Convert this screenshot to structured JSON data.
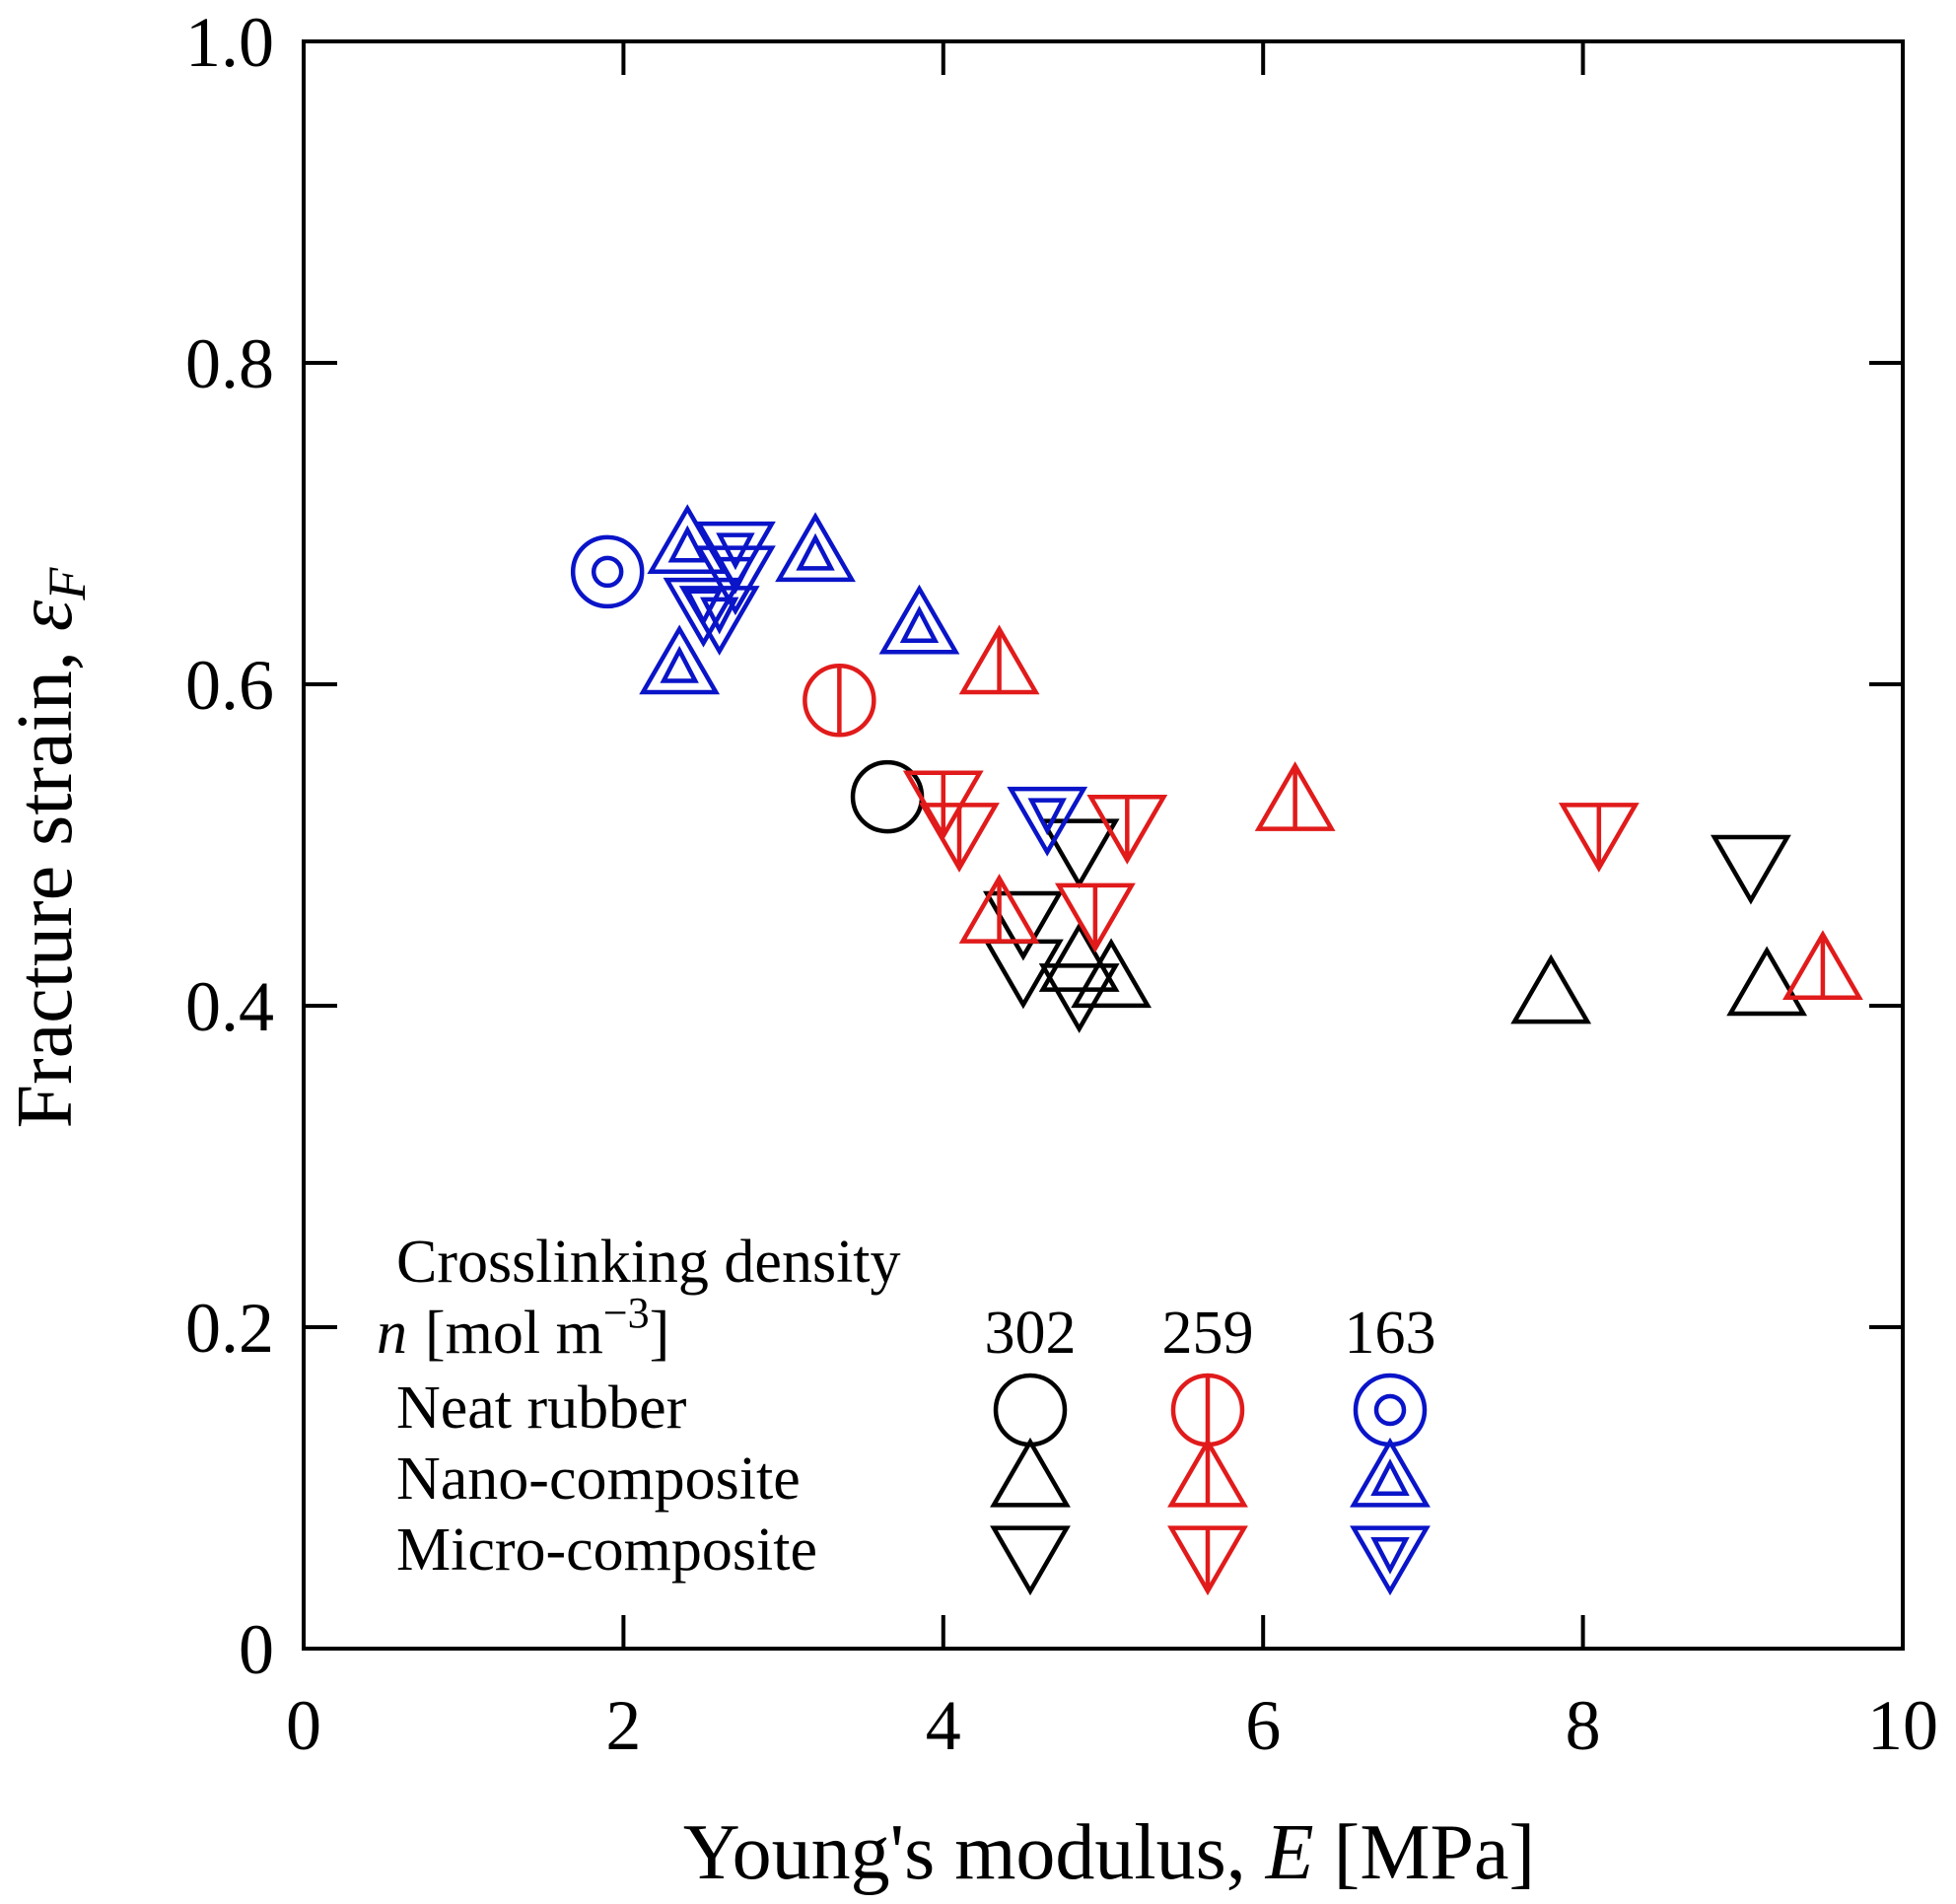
{
  "chart_data": {
    "type": "scatter",
    "xlabel": "Young's modulus, E [MPa]",
    "xlabel_parts": {
      "before": "Young's modulus, ",
      "italic": "E",
      "after": " [MPa]"
    },
    "ylabel": "Fracture strain, εF",
    "ylabel_parts": {
      "before": "Fracture strain, ",
      "symbol": "ε",
      "subscript": "F"
    },
    "xlim": [
      0,
      10
    ],
    "ylim": [
      0,
      1.0
    ],
    "xticks": [
      0,
      2,
      4,
      6,
      8,
      10
    ],
    "xtick_labels": [
      "0",
      "2",
      "4",
      "6",
      "8",
      "10"
    ],
    "yticks": [
      0,
      0.2,
      0.4,
      0.6,
      0.8,
      1.0
    ],
    "ytick_labels": [
      "0",
      "0.2",
      "0.4",
      "0.6",
      "0.8",
      "1.0"
    ],
    "grid": false,
    "legend": {
      "placement": "bottom-left",
      "title": "Crosslinking density",
      "unit_symbol": "n",
      "unit_text": "[mol m",
      "unit_exp": "−3",
      "unit_close": "]",
      "densities": [
        "302",
        "259",
        "163"
      ],
      "rows": [
        "Neat rubber",
        "Nano-composite",
        "Micro-composite"
      ],
      "row_markers": [
        "circle",
        "triangle-up",
        "triangle-down"
      ]
    },
    "colors": {
      "302": "#000000",
      "259": "#e11b1b",
      "163": "#0a14c8"
    },
    "series": [
      {
        "density": "302",
        "sample": "Neat rubber",
        "marker": "circle",
        "color": "#000000",
        "points": [
          [
            3.65,
            0.53
          ]
        ]
      },
      {
        "density": "302",
        "sample": "Nano-composite",
        "marker": "triangle-up",
        "color": "#000000",
        "points": [
          [
            4.85,
            0.425
          ],
          [
            5.05,
            0.415
          ],
          [
            7.8,
            0.405
          ],
          [
            9.15,
            0.41
          ]
        ]
      },
      {
        "density": "302",
        "sample": "Micro-composite",
        "marker": "triangle-down",
        "color": "#000000",
        "points": [
          [
            4.5,
            0.455
          ],
          [
            4.5,
            0.425
          ],
          [
            4.85,
            0.41
          ],
          [
            4.85,
            0.5
          ],
          [
            9.05,
            0.49
          ]
        ]
      },
      {
        "density": "259",
        "sample": "Neat rubber",
        "marker": "circle",
        "color": "#e11b1b",
        "points": [
          [
            3.35,
            0.59
          ]
        ]
      },
      {
        "density": "259",
        "sample": "Nano-composite",
        "marker": "triangle-up",
        "color": "#e11b1b",
        "points": [
          [
            4.35,
            0.61
          ],
          [
            4.35,
            0.455
          ],
          [
            6.2,
            0.525
          ],
          [
            9.5,
            0.42
          ]
        ]
      },
      {
        "density": "259",
        "sample": "Micro-composite",
        "marker": "triangle-down",
        "color": "#e11b1b",
        "points": [
          [
            4.0,
            0.53
          ],
          [
            4.1,
            0.51
          ],
          [
            4.95,
            0.46
          ],
          [
            5.15,
            0.515
          ],
          [
            8.1,
            0.51
          ]
        ]
      },
      {
        "density": "163",
        "sample": "Neat rubber",
        "marker": "circle",
        "color": "#0a14c8",
        "points": [
          [
            1.9,
            0.67
          ]
        ]
      },
      {
        "density": "163",
        "sample": "Nano-composite",
        "marker": "triangle-up",
        "color": "#0a14c8",
        "points": [
          [
            2.35,
            0.61
          ],
          [
            2.4,
            0.685
          ],
          [
            3.2,
            0.68
          ],
          [
            3.85,
            0.635
          ]
        ]
      },
      {
        "density": "163",
        "sample": "Micro-composite",
        "marker": "triangle-down",
        "color": "#0a14c8",
        "points": [
          [
            2.5,
            0.65
          ],
          [
            2.6,
            0.645
          ],
          [
            2.7,
            0.67
          ],
          [
            2.7,
            0.685
          ],
          [
            4.65,
            0.52
          ]
        ]
      }
    ]
  }
}
